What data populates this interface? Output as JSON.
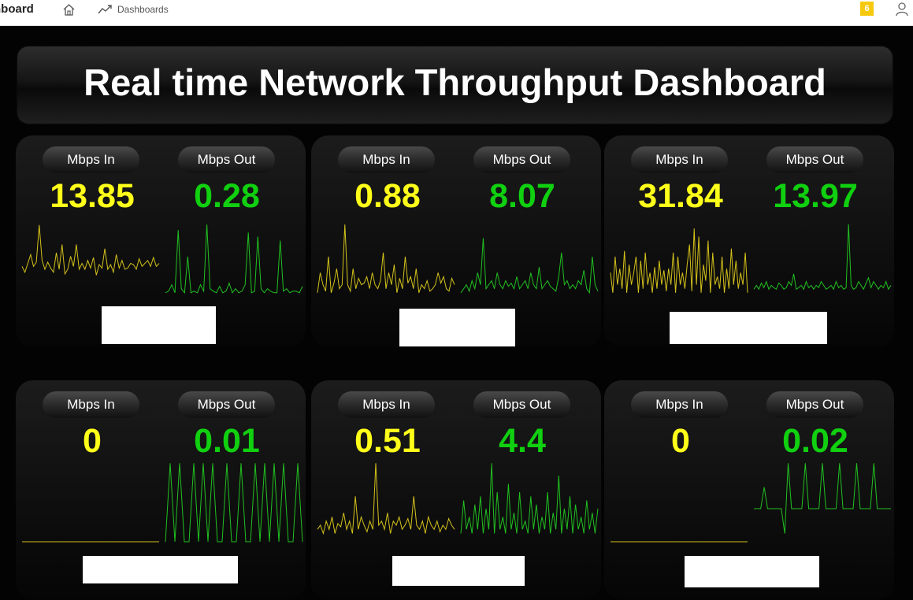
{
  "app": {
    "title": "hboard",
    "breadcrumb": "Dashboards",
    "notifications": "6",
    "icons": [
      "home-icon",
      "line-chart-icon",
      "user-icon"
    ]
  },
  "dashboard": {
    "title": "Real time Network Throughput Dashboard"
  },
  "colors": {
    "in": "#ffff19",
    "out": "#10d010",
    "in_line": "#d4c21b",
    "out_line": "#21c021"
  },
  "panels": [
    {
      "in_label": "Mbps In",
      "out_label": "Mbps Out",
      "in_value": "13.85",
      "out_value": "0.28",
      "in_series": [
        0.25,
        0.15,
        0.3,
        0.45,
        0.25,
        0.32,
        0.95,
        0.35,
        0.2,
        0.32,
        0.22,
        0.15,
        0.48,
        0.2,
        0.62,
        0.12,
        0.2,
        0.42,
        0.25,
        0.62,
        0.2,
        0.3,
        0.2,
        0.35,
        0.22,
        0.4,
        0.1,
        0.28,
        0.22,
        0.55,
        0.2,
        0.28,
        0.15,
        0.45,
        0.22,
        0.35,
        0.2,
        0.22,
        0.3,
        0.28,
        0.2,
        0.38,
        0.25,
        0.3,
        0.35,
        0.25,
        0.4,
        0.25,
        0.3
      ],
      "out_series": [
        0.1,
        0.12,
        0.2,
        0.1,
        0.88,
        0.15,
        0.1,
        0.55,
        0.1,
        0.12,
        0.1,
        0.2,
        0.12,
        0.95,
        0.15,
        0.12,
        0.1,
        0.18,
        0.1,
        0.12,
        0.22,
        0.1,
        0.15,
        0.1,
        0.12,
        0.2,
        0.85,
        0.1,
        0.12,
        0.8,
        0.15,
        0.1,
        0.15,
        0.12,
        0.1,
        0.1,
        0.75,
        0.12,
        0.15,
        0.1,
        0.12,
        0.12,
        0.1,
        0.18
      ],
      "redaction": true
    },
    {
      "in_label": "Mbps In",
      "out_label": "Mbps Out",
      "in_value": "0.88",
      "out_value": "8.07",
      "in_series": [
        0.1,
        0.35,
        0.2,
        0.12,
        0.55,
        0.1,
        0.22,
        0.4,
        0.15,
        0.2,
        0.95,
        0.2,
        0.12,
        0.4,
        0.15,
        0.28,
        0.2,
        0.22,
        0.3,
        0.15,
        0.35,
        0.2,
        0.15,
        0.25,
        0.6,
        0.15,
        0.35,
        0.2,
        0.45,
        0.1,
        0.28,
        0.15,
        0.55,
        0.22,
        0.3,
        0.15,
        0.4,
        0.1,
        0.2,
        0.15,
        0.25,
        0.12,
        0.15,
        0.2,
        0.35,
        0.22,
        0.3,
        0.15,
        0.12,
        0.28,
        0.2
      ],
      "out_series": [
        0.1,
        0.15,
        0.2,
        0.12,
        0.25,
        0.15,
        0.35,
        0.2,
        0.78,
        0.15,
        0.2,
        0.25,
        0.15,
        0.35,
        0.2,
        0.15,
        0.25,
        0.18,
        0.22,
        0.15,
        0.3,
        0.15,
        0.2,
        0.25,
        0.15,
        0.35,
        0.2,
        0.15,
        0.42,
        0.15,
        0.2,
        0.25,
        0.18,
        0.15,
        0.12,
        0.3,
        0.6,
        0.2,
        0.25,
        0.15,
        0.2,
        0.15,
        0.25,
        0.2,
        0.38,
        0.15,
        0.1,
        0.55,
        0.2,
        0.12
      ],
      "redaction": true
    },
    {
      "in_label": "Mbps In",
      "out_label": "Mbps Out",
      "in_value": "31.84",
      "out_value": "13.97",
      "in_series": [
        0.35,
        0.1,
        0.55,
        0.2,
        0.4,
        0.15,
        0.62,
        0.1,
        0.45,
        0.2,
        0.35,
        0.55,
        0.1,
        0.5,
        0.15,
        0.6,
        0.2,
        0.35,
        0.1,
        0.42,
        0.15,
        0.5,
        0.2,
        0.38,
        0.12,
        0.4,
        0.2,
        0.6,
        0.1,
        0.55,
        0.2,
        0.35,
        0.15,
        0.45,
        0.7,
        0.12,
        0.9,
        0.2,
        0.8,
        0.1,
        0.45,
        0.25,
        0.75,
        0.1,
        0.6,
        0.2,
        0.3,
        0.15,
        0.55,
        0.1,
        0.4,
        0.15,
        0.65,
        0.2,
        0.5,
        0.15,
        0.35,
        0.2,
        0.6,
        0.1
      ],
      "out_series": [
        0.1,
        0.15,
        0.1,
        0.18,
        0.12,
        0.2,
        0.1,
        0.15,
        0.12,
        0.1,
        0.18,
        0.15,
        0.1,
        0.12,
        0.2,
        0.15,
        0.3,
        0.1,
        0.12,
        0.15,
        0.1,
        0.2,
        0.12,
        0.15,
        0.1,
        0.15,
        0.12,
        0.2,
        0.15,
        0.1,
        0.12,
        0.15,
        0.1,
        0.2,
        0.12,
        0.15,
        0.1,
        0.12,
        0.95,
        0.15,
        0.1,
        0.12,
        0.2,
        0.15,
        0.1,
        0.18,
        0.25,
        0.12,
        0.2,
        0.15,
        0.1,
        0.15,
        0.12,
        0.2,
        0.1,
        0.15
      ],
      "redaction": true
    },
    {
      "in_label": "Mbps In",
      "out_label": "Mbps Out",
      "in_value": "0",
      "out_value": "0.01",
      "in_series": [
        0,
        0,
        0,
        0,
        0,
        0,
        0,
        0,
        0,
        0,
        0,
        0,
        0,
        0,
        0,
        0,
        0,
        0,
        0,
        0
      ],
      "out_series": [
        0.0,
        0.95,
        0.0,
        0.95,
        0.0,
        0.0,
        0.95,
        0.0,
        0.95,
        0.0,
        0.95,
        0.0,
        0.0,
        0.95,
        0.0,
        0.0,
        0.95,
        0.0,
        0.0,
        0.95,
        0.0,
        0.95,
        0.0,
        0.95,
        0.0,
        0.95,
        0.0,
        0.0,
        0.95,
        0.0
      ],
      "redaction": true
    },
    {
      "in_label": "Mbps In",
      "out_label": "Mbps Out",
      "in_value": "0.51",
      "out_value": "4.4",
      "in_series": [
        0.15,
        0.2,
        0.1,
        0.25,
        0.15,
        0.3,
        0.1,
        0.22,
        0.18,
        0.35,
        0.15,
        0.25,
        0.1,
        0.55,
        0.15,
        0.3,
        0.2,
        0.12,
        0.25,
        0.15,
        0.95,
        0.2,
        0.25,
        0.15,
        0.35,
        0.1,
        0.25,
        0.2,
        0.3,
        0.15,
        0.2,
        0.28,
        0.15,
        0.55,
        0.2,
        0.15,
        0.25,
        0.1,
        0.3,
        0.2,
        0.15,
        0.25,
        0.12,
        0.2,
        0.15,
        0.28,
        0.2,
        0.15
      ],
      "out_series": [
        0.1,
        0.5,
        0.15,
        0.3,
        0.1,
        0.45,
        0.15,
        0.55,
        0.1,
        0.4,
        0.15,
        0.95,
        0.1,
        0.6,
        0.15,
        0.3,
        0.1,
        0.7,
        0.15,
        0.35,
        0.1,
        0.6,
        0.15,
        0.25,
        0.1,
        0.55,
        0.15,
        0.45,
        0.1,
        0.3,
        0.15,
        0.6,
        0.1,
        0.35,
        0.15,
        0.8,
        0.1,
        0.4,
        0.15,
        0.55,
        0.1,
        0.45,
        0.15,
        0.3,
        0.1,
        0.5,
        0.15,
        0.35,
        0.1,
        0.4
      ],
      "redaction": true
    },
    {
      "in_label": "Mbps In",
      "out_label": "Mbps Out",
      "in_value": "0",
      "out_value": "0.02",
      "in_series": [
        0,
        0,
        0,
        0,
        0,
        0,
        0,
        0,
        0,
        0,
        0,
        0,
        0,
        0,
        0,
        0,
        0,
        0,
        0,
        0
      ],
      "out_series": [
        0.4,
        0.4,
        0.4,
        0.66,
        0.4,
        0.4,
        0.4,
        0.4,
        0.4,
        0.1,
        0.95,
        0.4,
        0.4,
        0.4,
        0.4,
        0.95,
        0.4,
        0.4,
        0.4,
        0.4,
        0.95,
        0.4,
        0.4,
        0.4,
        0.4,
        0.95,
        0.4,
        0.4,
        0.4,
        0.4,
        0.95,
        0.4,
        0.4,
        0.4,
        0.4,
        0.95,
        0.4,
        0.4,
        0.4,
        0.4,
        0.4
      ],
      "redaction": true
    }
  ]
}
